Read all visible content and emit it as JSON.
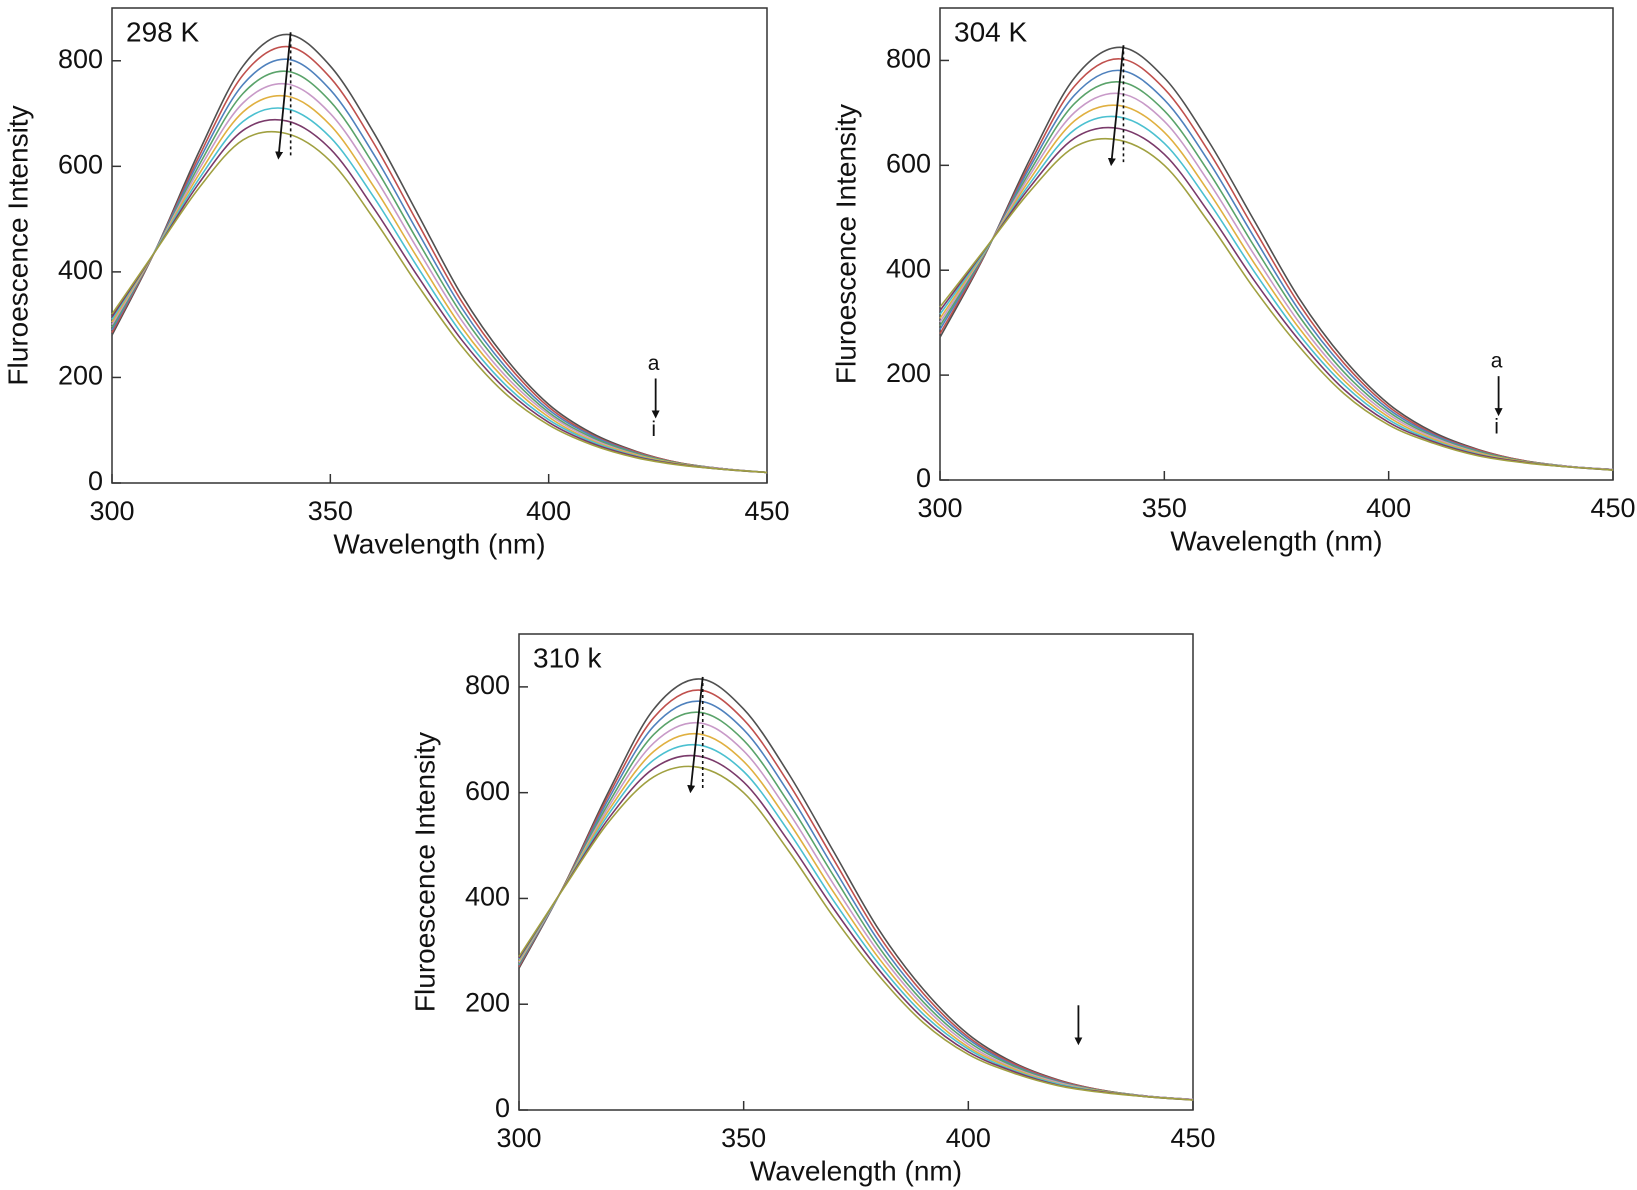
{
  "chart_data": [
    {
      "type": "line",
      "x_label": "Wavelength (nm)",
      "y_label": "Fluroescence Intensity",
      "annotations": [
        "298 K",
        "a",
        "i"
      ],
      "xlim": [
        300,
        450
      ],
      "xticks": [
        300,
        350,
        400,
        450
      ],
      "ylim": [
        0,
        900
      ],
      "yticks": [
        0,
        200,
        400,
        600,
        800
      ],
      "x": [
        300,
        310,
        320,
        330,
        340,
        350,
        360,
        370,
        380,
        390,
        400,
        410,
        420,
        430,
        440,
        450
      ],
      "series": [
        {
          "color": "#505050",
          "values": [
            280,
            442,
            629,
            790,
            850,
            790,
            663,
            510,
            357,
            238,
            149,
            94,
            60,
            38,
            27,
            20
          ]
        },
        {
          "color": "#c0504d",
          "values": [
            285,
            442,
            620,
            773,
            827,
            768,
            643,
            493,
            345,
            230,
            144,
            91,
            59,
            38,
            27,
            20
          ]
        },
        {
          "color": "#4f81bd",
          "values": [
            290,
            442,
            612,
            755,
            803,
            745,
            622,
            476,
            333,
            221,
            139,
            89,
            57,
            37,
            27,
            20
          ]
        },
        {
          "color": "#5aa36a",
          "values": [
            295,
            441,
            603,
            738,
            780,
            723,
            602,
            459,
            321,
            213,
            134,
            86,
            56,
            37,
            27,
            20
          ]
        },
        {
          "color": "#c89ac8",
          "values": [
            300,
            441,
            595,
            720,
            756,
            700,
            582,
            443,
            309,
            204,
            130,
            83,
            54,
            36,
            27,
            20
          ]
        },
        {
          "color": "#e0b040",
          "values": [
            305,
            441,
            586,
            703,
            733,
            678,
            561,
            426,
            296,
            196,
            125,
            80,
            53,
            36,
            26,
            20
          ]
        },
        {
          "color": "#4bc0d0",
          "values": [
            310,
            441,
            577,
            685,
            709,
            655,
            541,
            409,
            284,
            187,
            120,
            78,
            51,
            35,
            26,
            20
          ]
        },
        {
          "color": "#7a3a6a",
          "values": [
            315,
            440,
            569,
            668,
            686,
            633,
            520,
            392,
            272,
            179,
            115,
            75,
            50,
            35,
            26,
            20
          ]
        },
        {
          "color": "#a0a040",
          "values": [
            320,
            440,
            560,
            650,
            662,
            610,
            500,
            375,
            260,
            170,
            110,
            72,
            48,
            34,
            26,
            20
          ]
        }
      ]
    },
    {
      "type": "line",
      "x_label": "Wavelength (nm)",
      "y_label": "Fluroescence Intensity",
      "annotations": [
        "304 K",
        "a",
        "i"
      ],
      "xlim": [
        300,
        450
      ],
      "xticks": [
        300,
        350,
        400,
        450
      ],
      "ylim": [
        0,
        900
      ],
      "yticks": [
        0,
        200,
        400,
        600,
        800
      ],
      "x": [
        300,
        310,
        320,
        330,
        340,
        350,
        360,
        370,
        380,
        390,
        400,
        410,
        420,
        430,
        440,
        450
      ],
      "series": [
        {
          "color": "#505050",
          "values": [
            272,
            429,
            611,
            767,
            825,
            767,
            644,
            495,
            347,
            231,
            145,
            91,
            58,
            37,
            26,
            20
          ]
        },
        {
          "color": "#c0504d",
          "values": [
            279,
            430,
            603,
            751,
            803,
            746,
            625,
            479,
            336,
            223,
            140,
            88,
            57,
            37,
            26,
            20
          ]
        },
        {
          "color": "#4f81bd",
          "values": [
            287,
            432,
            596,
            734,
            781,
            725,
            606,
            463,
            324,
            215,
            135,
            86,
            55,
            36,
            26,
            20
          ]
        },
        {
          "color": "#5aa36a",
          "values": [
            294,
            433,
            588,
            718,
            759,
            704,
            586,
            446,
            313,
            206,
            130,
            83,
            54,
            36,
            26,
            20
          ]
        },
        {
          "color": "#c89ac8",
          "values": [
            301,
            435,
            581,
            701,
            737,
            684,
            567,
            430,
            301,
            198,
            125,
            81,
            52,
            35,
            26,
            20
          ]
        },
        {
          "color": "#e0b040",
          "values": [
            308,
            436,
            573,
            685,
            714,
            663,
            548,
            414,
            290,
            190,
            120,
            78,
            51,
            35,
            25,
            19
          ]
        },
        {
          "color": "#4bc0d0",
          "values": [
            316,
            437,
            565,
            668,
            692,
            642,
            529,
            398,
            278,
            182,
            115,
            75,
            49,
            34,
            25,
            19
          ]
        },
        {
          "color": "#7a3a6a",
          "values": [
            323,
            439,
            558,
            652,
            670,
            621,
            509,
            381,
            267,
            173,
            110,
            73,
            48,
            34,
            25,
            19
          ]
        },
        {
          "color": "#a0a040",
          "values": [
            330,
            440,
            550,
            635,
            648,
            600,
            490,
            365,
            255,
            165,
            105,
            70,
            46,
            33,
            25,
            19
          ]
        }
      ]
    },
    {
      "type": "line",
      "x_label": "Wavelength (nm)",
      "y_label": "Fluroescence Intensity",
      "annotations": [
        "310 k"
      ],
      "xlim": [
        300,
        450
      ],
      "xticks": [
        300,
        350,
        400,
        450
      ],
      "ylim": [
        0,
        900
      ],
      "yticks": [
        0,
        200,
        400,
        600,
        800
      ],
      "x": [
        300,
        310,
        320,
        330,
        340,
        350,
        360,
        370,
        380,
        390,
        400,
        410,
        420,
        430,
        440,
        450
      ],
      "series": [
        {
          "color": "#505050",
          "values": [
            268,
            424,
            603,
            758,
            815,
            758,
            636,
            489,
            342,
            228,
            143,
            90,
            57,
            37,
            26,
            20
          ]
        },
        {
          "color": "#c0504d",
          "values": [
            271,
            424,
            596,
            742,
            794,
            738,
            618,
            474,
            331,
            220,
            138,
            88,
            56,
            37,
            26,
            20
          ]
        },
        {
          "color": "#4f81bd",
          "values": [
            274,
            423,
            589,
            726,
            773,
            719,
            600,
            458,
            320,
            212,
            134,
            85,
            54,
            36,
            26,
            20
          ]
        },
        {
          "color": "#5aa36a",
          "values": [
            276,
            423,
            581,
            710,
            752,
            699,
            581,
            443,
            309,
            204,
            129,
            83,
            53,
            36,
            26,
            20
          ]
        },
        {
          "color": "#c89ac8",
          "values": [
            279,
            422,
            574,
            694,
            732,
            679,
            563,
            427,
            299,
            197,
            124,
            80,
            52,
            35,
            26,
            20
          ]
        },
        {
          "color": "#e0b040",
          "values": [
            282,
            422,
            567,
            678,
            711,
            659,
            545,
            412,
            288,
            189,
            119,
            78,
            50,
            35,
            25,
            19
          ]
        },
        {
          "color": "#4bc0d0",
          "values": [
            285,
            421,
            560,
            662,
            690,
            640,
            527,
            396,
            277,
            181,
            115,
            75,
            49,
            34,
            25,
            19
          ]
        },
        {
          "color": "#7a3a6a",
          "values": [
            287,
            421,
            552,
            646,
            669,
            620,
            508,
            381,
            266,
            173,
            110,
            73,
            47,
            34,
            25,
            19
          ]
        },
        {
          "color": "#a0a040",
          "values": [
            290,
            420,
            545,
            630,
            648,
            600,
            490,
            365,
            255,
            165,
            105,
            70,
            46,
            33,
            25,
            19
          ]
        }
      ]
    }
  ]
}
